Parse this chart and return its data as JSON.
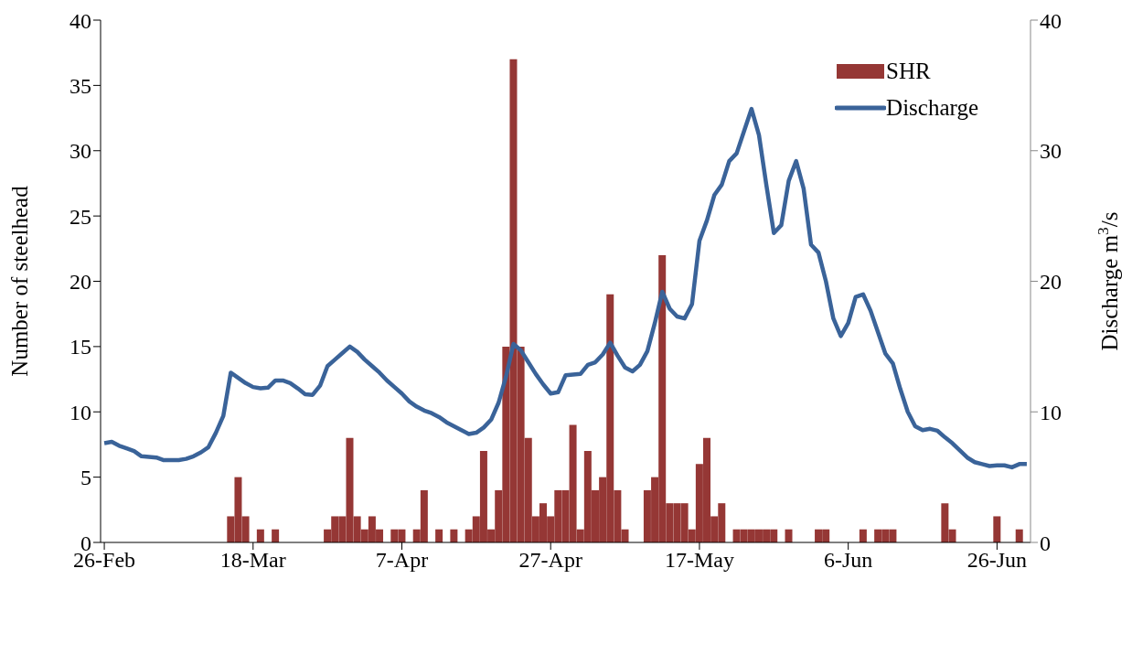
{
  "chart_data": {
    "type": "bar",
    "xlabel": null,
    "ylabel": "Number of steelhead",
    "y2label": "Discharge m$^{3}$/s",
    "categories": [
      "26-Feb",
      null,
      null,
      null,
      null,
      null,
      null,
      null,
      null,
      null,
      null,
      null,
      null,
      null,
      null,
      null,
      null,
      null,
      null,
      null,
      "18-Mar",
      null,
      null,
      null,
      null,
      null,
      null,
      null,
      null,
      null,
      null,
      null,
      null,
      null,
      null,
      null,
      null,
      null,
      null,
      null,
      "7-Apr",
      null,
      null,
      null,
      null,
      null,
      null,
      null,
      null,
      null,
      null,
      null,
      null,
      null,
      null,
      null,
      null,
      null,
      null,
      null,
      "27-Apr",
      null,
      null,
      null,
      null,
      null,
      null,
      null,
      null,
      null,
      null,
      null,
      null,
      null,
      null,
      null,
      null,
      null,
      null,
      null,
      "17-May",
      null,
      null,
      null,
      null,
      null,
      null,
      null,
      null,
      null,
      null,
      null,
      null,
      null,
      null,
      null,
      null,
      null,
      null,
      null,
      "6-Jun",
      null,
      null,
      null,
      null,
      null,
      null,
      null,
      null,
      null,
      null,
      null,
      null,
      null,
      null,
      null,
      null,
      null,
      null,
      null,
      "26-Jun",
      null,
      null,
      null,
      null
    ],
    "series": [
      {
        "name": "SHR",
        "color": "#953735",
        "values": [
          0,
          0,
          0,
          0,
          0,
          0,
          0,
          0,
          0,
          0,
          0,
          0,
          0,
          0,
          0,
          0,
          0,
          2,
          5,
          2,
          0,
          1,
          0,
          1,
          0,
          0,
          0,
          0,
          0,
          0,
          1,
          2,
          2,
          8,
          2,
          1,
          2,
          1,
          0,
          1,
          1,
          0,
          1,
          4,
          0,
          1,
          0,
          1,
          0,
          1,
          2,
          7,
          1,
          4,
          15,
          37,
          15,
          8,
          2,
          3,
          2,
          4,
          4,
          9,
          1,
          7,
          4,
          5,
          19,
          4,
          1,
          0,
          0,
          4,
          5,
          22,
          3,
          3,
          3,
          1,
          6,
          8,
          2,
          3,
          0,
          1,
          1,
          1,
          1,
          1,
          1,
          0,
          1,
          0,
          0,
          0,
          1,
          1,
          0,
          0,
          0,
          0,
          1,
          0,
          1,
          1,
          1,
          0,
          0,
          0,
          0,
          0,
          0,
          3,
          1,
          0,
          0,
          0,
          0,
          0,
          2,
          0,
          0,
          1,
          0
        ]
      },
      {
        "name": "Discharge",
        "type": "line",
        "axis": "y2",
        "color": "#3a6399",
        "values": [
          7.6,
          7.7,
          7.4,
          7.2,
          7.0,
          6.6,
          6.55,
          6.5,
          6.3,
          6.3,
          6.3,
          6.4,
          6.6,
          6.9,
          7.3,
          8.4,
          9.7,
          13.0,
          12.6,
          12.2,
          11.9,
          11.8,
          11.85,
          12.4,
          12.4,
          12.2,
          11.8,
          11.35,
          11.3,
          12.0,
          13.5,
          14.0,
          14.5,
          15.0,
          14.6,
          14.0,
          13.5,
          13.0,
          12.4,
          11.9,
          11.4,
          10.8,
          10.4,
          10.1,
          9.9,
          9.6,
          9.2,
          8.9,
          8.6,
          8.3,
          8.4,
          8.8,
          9.4,
          10.7,
          12.7,
          15.2,
          14.7,
          13.8,
          12.9,
          12.1,
          11.4,
          11.5,
          12.8,
          12.85,
          12.9,
          13.6,
          13.8,
          14.4,
          15.3,
          14.3,
          13.4,
          13.1,
          13.6,
          14.65,
          16.8,
          19.2,
          17.9,
          17.3,
          17.15,
          18.25,
          23.1,
          24.65,
          26.6,
          27.4,
          29.2,
          29.8,
          31.5,
          33.2,
          31.2,
          27.35,
          23.7,
          24.3,
          27.7,
          29.2,
          27.1,
          22.8,
          22.2,
          20.0,
          17.15,
          15.8,
          16.8,
          18.8,
          19.0,
          17.75,
          16.1,
          14.45,
          13.7,
          11.75,
          10.0,
          8.9,
          8.6,
          8.7,
          8.55,
          8.05,
          7.6,
          7.05,
          6.5,
          6.15,
          6.0,
          5.85,
          5.9,
          5.9,
          5.75,
          6.0,
          6.0
        ]
      }
    ],
    "ylim": [
      0,
      40
    ],
    "yticks": [
      0,
      5,
      10,
      15,
      20,
      25,
      30,
      35,
      40
    ],
    "y2lim": [
      0,
      40
    ],
    "y2ticks": [
      0,
      10,
      20,
      30,
      40
    ],
    "legend": "top right",
    "grid": false,
    "marker": "none",
    "line_style": "solid"
  }
}
